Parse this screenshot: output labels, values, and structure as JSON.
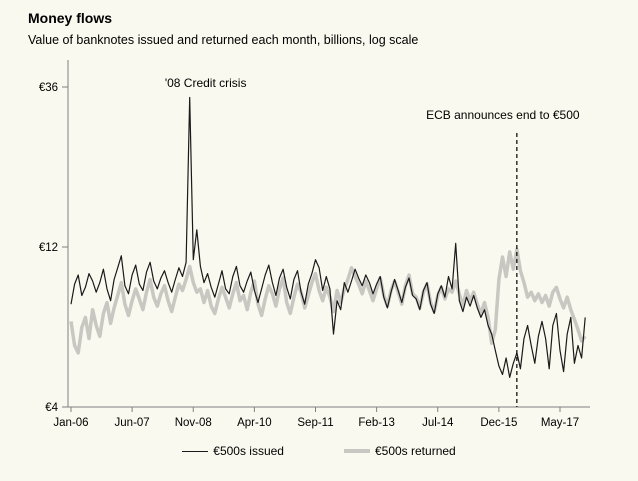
{
  "header": {
    "title": "Money flows",
    "subtitle": "Value of banknotes issued and returned each month, billions, log scale"
  },
  "colors": {
    "background": "#faf9ef",
    "axis": "#808080",
    "issued_line": "#1a1a1a",
    "returned_line": "#c8c7c2",
    "annotation_line": "#000000"
  },
  "chart_data": {
    "type": "line",
    "title": "Money flows",
    "subtitle": "Value of banknotes issued and returned each month, billions, log scale",
    "x_unit": "month",
    "x_start": "Jan-06",
    "x_end": "Dec-17",
    "x_tick_labels": [
      "Jan-06",
      "Jun-07",
      "Nov-08",
      "Apr-10",
      "Sep-11",
      "Feb-13",
      "Jul-14",
      "Dec-15",
      "May-17"
    ],
    "x_tick_month_indices": [
      0,
      17,
      34,
      51,
      68,
      85,
      102,
      119,
      136
    ],
    "y_scale": "log",
    "y_ticks": [
      4,
      12,
      36
    ],
    "y_tick_labels": [
      "€4",
      "€12",
      "€36"
    ],
    "ylim": [
      4,
      36
    ],
    "grid": false,
    "legend_position": "bottom-center",
    "series": [
      {
        "name": "€500s issued",
        "color": "#1a1a1a",
        "stroke_width": 1.2,
        "values": [
          8.1,
          9.3,
          9.9,
          8.6,
          9.1,
          10.0,
          9.5,
          8.8,
          9.4,
          10.3,
          9.0,
          8.3,
          9.6,
          10.4,
          11.3,
          9.2,
          8.7,
          9.9,
          10.6,
          9.3,
          8.9,
          10.1,
          10.8,
          9.5,
          9.0,
          9.7,
          10.2,
          9.4,
          8.8,
          9.6,
          10.4,
          9.8,
          10.8,
          33.5,
          11.0,
          13.5,
          10.5,
          9.4,
          10.0,
          9.1,
          8.5,
          9.3,
          10.2,
          9.0,
          8.7,
          9.8,
          10.5,
          9.2,
          8.8,
          9.5,
          10.1,
          8.9,
          8.2,
          9.0,
          9.9,
          10.6,
          9.4,
          8.6,
          9.7,
          10.3,
          9.1,
          8.4,
          9.6,
          10.2,
          8.8,
          8.1,
          9.3,
          10.0,
          11.0,
          10.4,
          8.9,
          9.8,
          9.0,
          6.6,
          8.3,
          7.8,
          9.4,
          8.8,
          9.5,
          10.3,
          9.7,
          9.2,
          9.9,
          9.4,
          8.7,
          9.3,
          9.8,
          8.5,
          7.9,
          8.8,
          9.6,
          8.9,
          8.2,
          9.1,
          9.7,
          8.6,
          8.4,
          7.8,
          8.9,
          9.4,
          8.1,
          7.6,
          8.7,
          9.2,
          8.5,
          9.8,
          9.0,
          12.3,
          8.3,
          7.7,
          8.5,
          8.0,
          8.6,
          7.9,
          7.4,
          7.8,
          7.0,
          6.6,
          5.9,
          5.3,
          5.0,
          5.6,
          4.9,
          5.4,
          5.8,
          5.2,
          6.4,
          7.0,
          6.1,
          5.4,
          6.5,
          7.2,
          6.4,
          5.2,
          7.0,
          7.6,
          5.9,
          5.1,
          6.6,
          7.4,
          5.4,
          6.1,
          5.6,
          7.4
        ]
      },
      {
        "name": "€500s returned",
        "color": "#c8c7c2",
        "stroke_width": 3.5,
        "values": [
          7.2,
          6.1,
          5.8,
          6.9,
          7.4,
          6.4,
          7.8,
          7.0,
          6.5,
          7.6,
          8.2,
          7.1,
          7.9,
          8.6,
          9.4,
          8.1,
          7.5,
          8.3,
          9.0,
          8.4,
          7.8,
          8.8,
          9.6,
          8.5,
          8.0,
          8.7,
          9.2,
          8.3,
          7.7,
          8.5,
          9.3,
          8.9,
          9.6,
          10.5,
          9.4,
          8.8,
          9.0,
          8.2,
          8.9,
          8.0,
          7.6,
          8.4,
          9.1,
          8.5,
          7.9,
          8.7,
          9.4,
          8.3,
          8.6,
          7.8,
          8.8,
          9.5,
          8.1,
          7.5,
          8.4,
          9.2,
          8.7,
          8.0,
          9.0,
          9.7,
          8.2,
          7.6,
          8.5,
          9.3,
          8.8,
          7.9,
          8.6,
          9.4,
          10.0,
          8.9,
          8.3,
          9.1,
          8.5,
          7.7,
          8.9,
          8.2,
          9.0,
          9.6,
          10.4,
          9.8,
          9.3,
          8.7,
          9.5,
          8.9,
          8.3,
          9.0,
          9.7,
          8.6,
          8.0,
          8.9,
          9.5,
          8.8,
          8.1,
          9.2,
          9.9,
          8.7,
          8.5,
          7.9,
          8.8,
          9.3,
          8.2,
          7.7,
          8.6,
          9.1,
          8.4,
          9.0,
          8.8,
          9.5,
          8.7,
          8.0,
          8.9,
          8.3,
          8.8,
          8.1,
          7.6,
          8.2,
          7.4,
          6.2,
          6.8,
          9.6,
          11.2,
          9.8,
          11.6,
          10.3,
          11.8,
          10.2,
          9.4,
          8.5,
          8.8,
          8.3,
          8.7,
          8.2,
          8.6,
          8.0,
          8.8,
          9.1,
          8.4,
          7.9,
          8.5,
          7.8,
          7.3,
          6.8,
          6.3,
          6.5
        ]
      }
    ],
    "annotations": [
      {
        "text": "'08 Credit crisis",
        "month_index": 33,
        "type": "label"
      },
      {
        "text": "ECB announces end to €500",
        "month_index": 124,
        "type": "dashed-vline-label"
      }
    ]
  }
}
